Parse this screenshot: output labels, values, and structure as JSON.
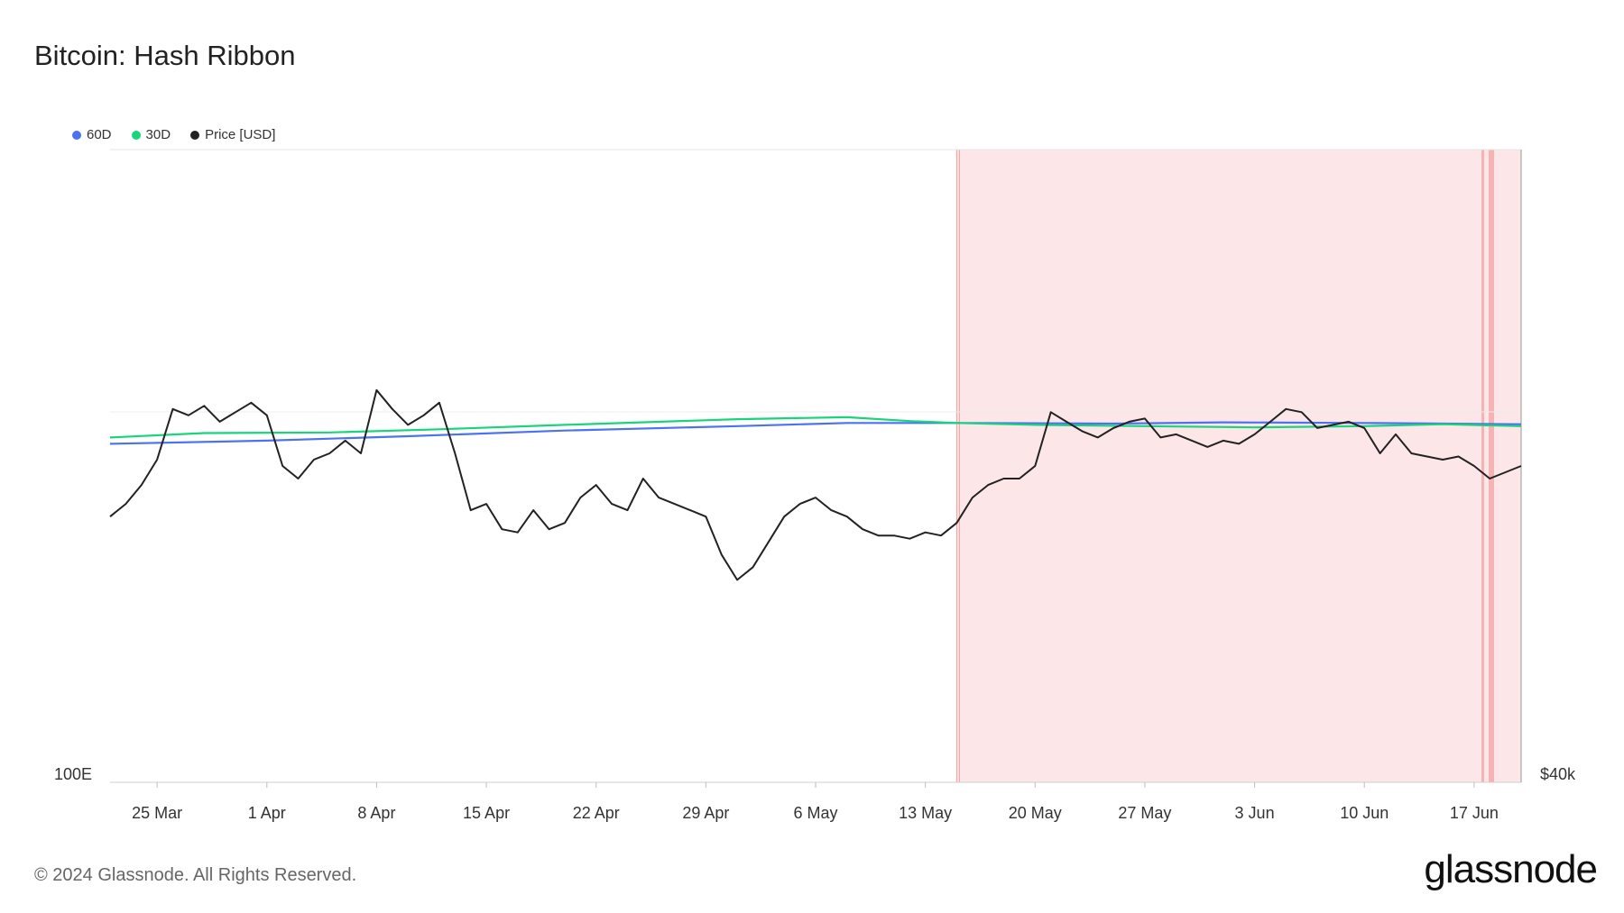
{
  "header": {
    "title": "Bitcoin: Hash Ribbon"
  },
  "legend": [
    {
      "label": "60D",
      "color": "#4a72f2",
      "icon": "legend-dot"
    },
    {
      "label": "30D",
      "color": "#18d47a",
      "icon": "legend-dot"
    },
    {
      "label": "Price [USD]",
      "color": "#222222",
      "icon": "legend-dot"
    }
  ],
  "footer": {
    "copyright": "© 2024 Glassnode. All Rights Reserved.",
    "brand": "glassnode"
  },
  "chart_data": {
    "type": "line",
    "title": "Bitcoin: Hash Ribbon",
    "x_start": "2024-03-22",
    "x_end": "2024-06-20",
    "x_ticks": [
      "25 Mar",
      "1 Apr",
      "8 Apr",
      "15 Apr",
      "22 Apr",
      "29 Apr",
      "6 May",
      "13 May",
      "20 May",
      "27 May",
      "3 Jun",
      "10 Jun",
      "17 Jun"
    ],
    "x_tick_dates": [
      "2024-03-25",
      "2024-04-01",
      "2024-04-08",
      "2024-04-15",
      "2024-04-22",
      "2024-04-29",
      "2024-05-06",
      "2024-05-13",
      "2024-05-20",
      "2024-05-27",
      "2024-06-03",
      "2024-06-10",
      "2024-06-17"
    ],
    "y_left": {
      "label": "",
      "tick_labels": [
        "100E"
      ]
    },
    "y_right": {
      "label": "",
      "tick_labels": [
        "$40k"
      ]
    },
    "grid": true,
    "legend_position": "top-left",
    "shaded_regions": [
      {
        "start": "2024-05-15",
        "end": "2024-06-20",
        "color": "#fce6e7",
        "label": ""
      }
    ],
    "series": [
      {
        "name": "60D",
        "color": "#4a72f2",
        "points": [
          [
            "2024-03-22",
            0.535
          ],
          [
            "2024-04-01",
            0.54
          ],
          [
            "2024-04-10",
            0.547
          ],
          [
            "2024-04-20",
            0.556
          ],
          [
            "2024-05-01",
            0.563
          ],
          [
            "2024-05-08",
            0.568
          ],
          [
            "2024-05-15",
            0.568
          ],
          [
            "2024-05-25",
            0.567
          ],
          [
            "2024-06-01",
            0.569
          ],
          [
            "2024-06-10",
            0.568
          ],
          [
            "2024-06-15",
            0.567
          ],
          [
            "2024-06-20",
            0.566
          ]
        ]
      },
      {
        "name": "30D",
        "color": "#18d47a",
        "points": [
          [
            "2024-03-22",
            0.545
          ],
          [
            "2024-03-28",
            0.552
          ],
          [
            "2024-04-05",
            0.553
          ],
          [
            "2024-04-12",
            0.558
          ],
          [
            "2024-04-20",
            0.565
          ],
          [
            "2024-05-01",
            0.574
          ],
          [
            "2024-05-08",
            0.577
          ],
          [
            "2024-05-12",
            0.571
          ],
          [
            "2024-05-15",
            0.568
          ],
          [
            "2024-05-20",
            0.565
          ],
          [
            "2024-05-27",
            0.563
          ],
          [
            "2024-06-03",
            0.561
          ],
          [
            "2024-06-10",
            0.563
          ],
          [
            "2024-06-15",
            0.566
          ],
          [
            "2024-06-20",
            0.563
          ]
        ]
      },
      {
        "name": "Price [USD]",
        "color": "#222222",
        "points": [
          [
            "2024-03-22",
            0.42
          ],
          [
            "2024-03-23",
            0.44
          ],
          [
            "2024-03-24",
            0.47
          ],
          [
            "2024-03-25",
            0.51
          ],
          [
            "2024-03-26",
            0.59
          ],
          [
            "2024-03-27",
            0.58
          ],
          [
            "2024-03-28",
            0.595
          ],
          [
            "2024-03-29",
            0.57
          ],
          [
            "2024-03-30",
            0.585
          ],
          [
            "2024-03-31",
            0.6
          ],
          [
            "2024-04-01",
            0.58
          ],
          [
            "2024-04-02",
            0.5
          ],
          [
            "2024-04-03",
            0.48
          ],
          [
            "2024-04-04",
            0.51
          ],
          [
            "2024-04-05",
            0.52
          ],
          [
            "2024-04-06",
            0.54
          ],
          [
            "2024-04-07",
            0.52
          ],
          [
            "2024-04-08",
            0.62
          ],
          [
            "2024-04-09",
            0.59
          ],
          [
            "2024-04-10",
            0.565
          ],
          [
            "2024-04-11",
            0.58
          ],
          [
            "2024-04-12",
            0.6
          ],
          [
            "2024-04-13",
            0.52
          ],
          [
            "2024-04-14",
            0.43
          ],
          [
            "2024-04-15",
            0.44
          ],
          [
            "2024-04-16",
            0.4
          ],
          [
            "2024-04-17",
            0.395
          ],
          [
            "2024-04-18",
            0.43
          ],
          [
            "2024-04-19",
            0.4
          ],
          [
            "2024-04-20",
            0.41
          ],
          [
            "2024-04-21",
            0.45
          ],
          [
            "2024-04-22",
            0.47
          ],
          [
            "2024-04-23",
            0.44
          ],
          [
            "2024-04-24",
            0.43
          ],
          [
            "2024-04-25",
            0.48
          ],
          [
            "2024-04-26",
            0.45
          ],
          [
            "2024-04-27",
            0.44
          ],
          [
            "2024-04-28",
            0.43
          ],
          [
            "2024-04-29",
            0.42
          ],
          [
            "2024-04-30",
            0.36
          ],
          [
            "2024-05-01",
            0.32
          ],
          [
            "2024-05-02",
            0.34
          ],
          [
            "2024-05-03",
            0.38
          ],
          [
            "2024-05-04",
            0.42
          ],
          [
            "2024-05-05",
            0.44
          ],
          [
            "2024-05-06",
            0.45
          ],
          [
            "2024-05-07",
            0.43
          ],
          [
            "2024-05-08",
            0.42
          ],
          [
            "2024-05-09",
            0.4
          ],
          [
            "2024-05-10",
            0.39
          ],
          [
            "2024-05-11",
            0.39
          ],
          [
            "2024-05-12",
            0.385
          ],
          [
            "2024-05-13",
            0.395
          ],
          [
            "2024-05-14",
            0.39
          ],
          [
            "2024-05-15",
            0.41
          ],
          [
            "2024-05-16",
            0.45
          ],
          [
            "2024-05-17",
            0.47
          ],
          [
            "2024-05-18",
            0.48
          ],
          [
            "2024-05-19",
            0.48
          ],
          [
            "2024-05-20",
            0.5
          ],
          [
            "2024-05-21",
            0.585
          ],
          [
            "2024-05-22",
            0.57
          ],
          [
            "2024-05-23",
            0.555
          ],
          [
            "2024-05-24",
            0.545
          ],
          [
            "2024-05-25",
            0.56
          ],
          [
            "2024-05-26",
            0.57
          ],
          [
            "2024-05-27",
            0.575
          ],
          [
            "2024-05-28",
            0.545
          ],
          [
            "2024-05-29",
            0.55
          ],
          [
            "2024-05-30",
            0.54
          ],
          [
            "2024-05-31",
            0.53
          ],
          [
            "2024-06-01",
            0.54
          ],
          [
            "2024-06-02",
            0.535
          ],
          [
            "2024-06-03",
            0.55
          ],
          [
            "2024-06-04",
            0.57
          ],
          [
            "2024-06-05",
            0.59
          ],
          [
            "2024-06-06",
            0.585
          ],
          [
            "2024-06-07",
            0.56
          ],
          [
            "2024-06-08",
            0.565
          ],
          [
            "2024-06-09",
            0.57
          ],
          [
            "2024-06-10",
            0.56
          ],
          [
            "2024-06-11",
            0.52
          ],
          [
            "2024-06-12",
            0.55
          ],
          [
            "2024-06-13",
            0.52
          ],
          [
            "2024-06-14",
            0.515
          ],
          [
            "2024-06-15",
            0.51
          ],
          [
            "2024-06-16",
            0.515
          ],
          [
            "2024-06-17",
            0.5
          ],
          [
            "2024-06-18",
            0.48
          ],
          [
            "2024-06-19",
            0.49
          ],
          [
            "2024-06-20",
            0.5
          ]
        ]
      }
    ]
  }
}
